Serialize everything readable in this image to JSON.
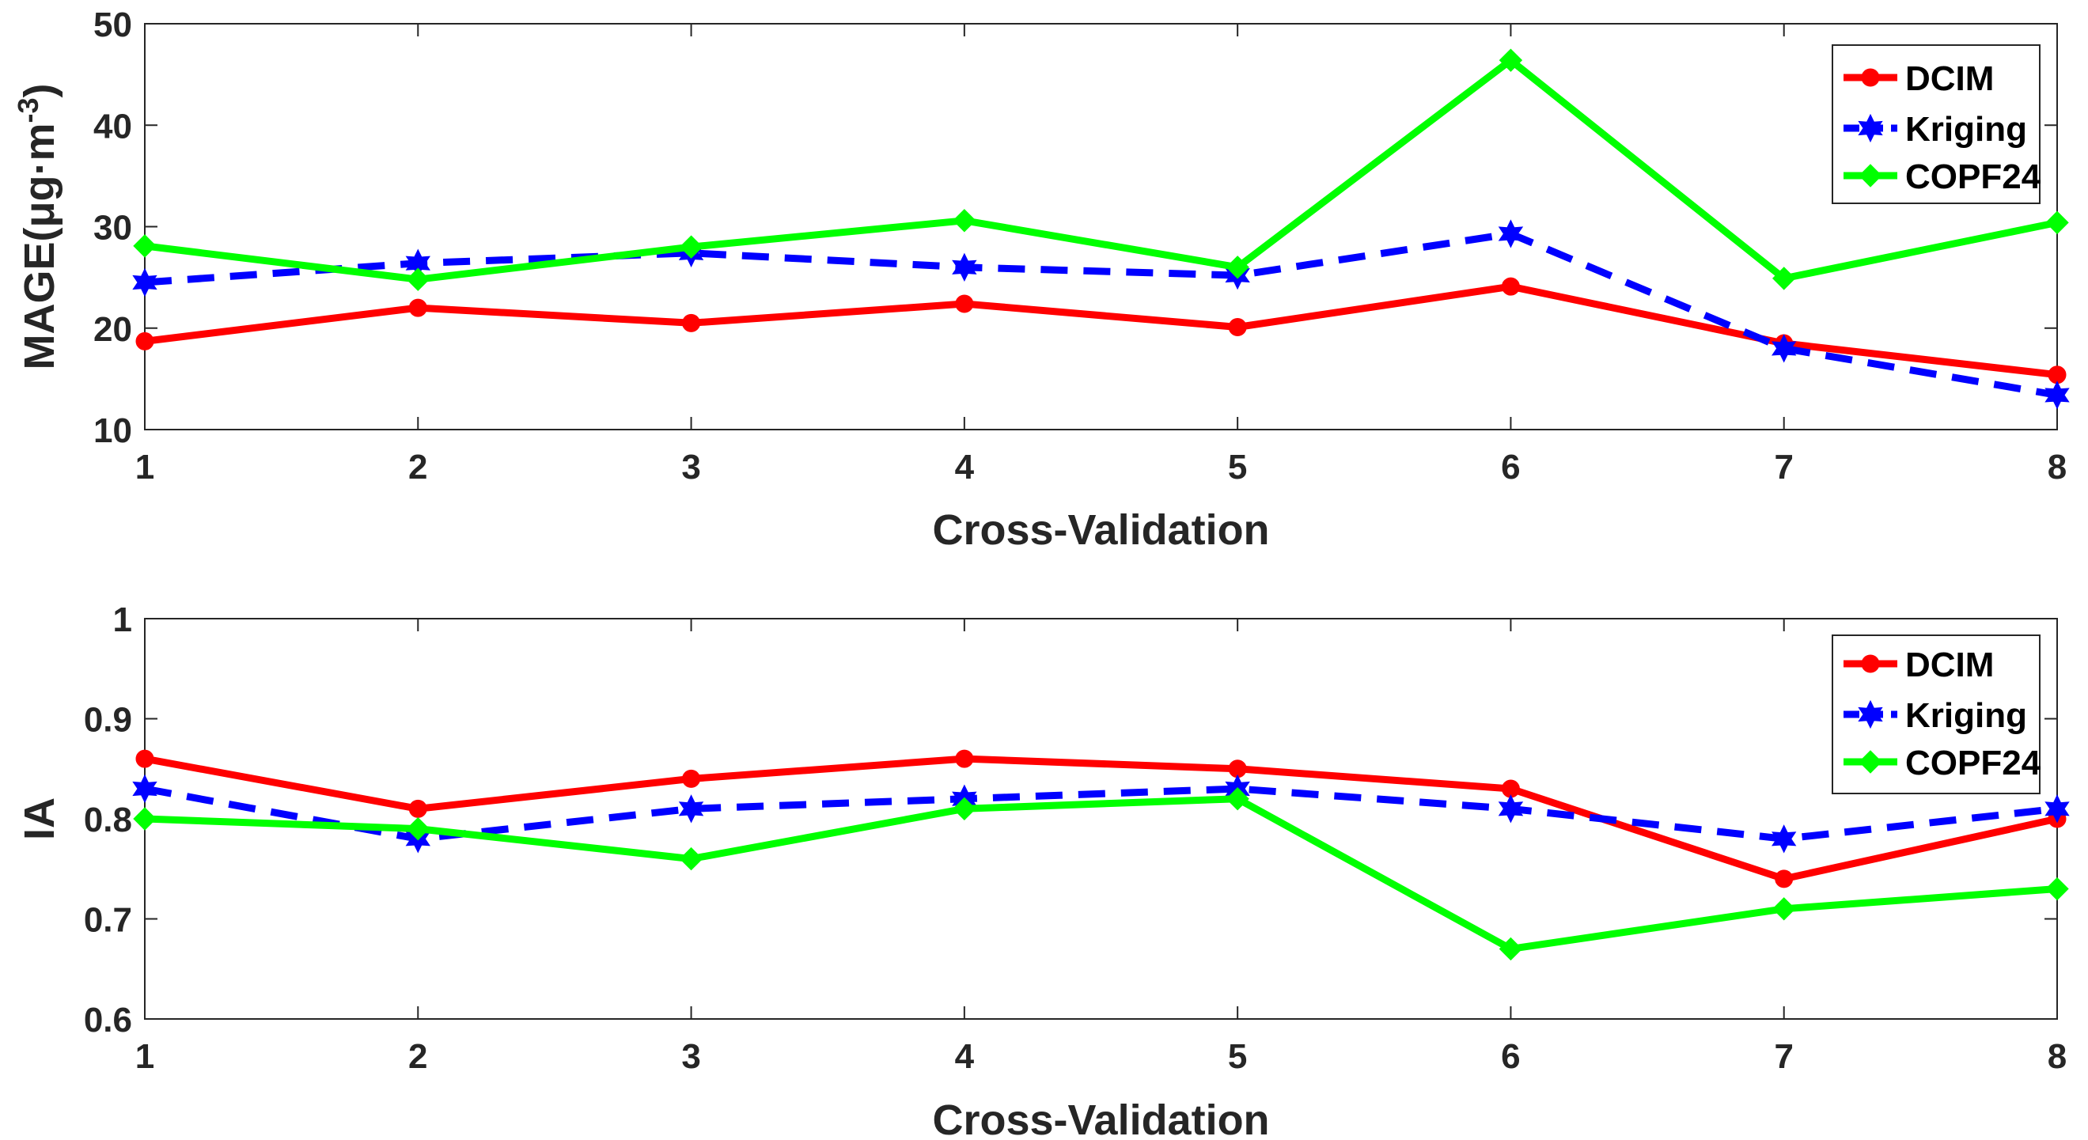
{
  "chart_data": [
    {
      "type": "line",
      "title": "",
      "xlabel": "Cross-Validation",
      "ylabel": "MAGE(μg·m",
      "ylabel_sup": "-3",
      "ylabel_close": ")",
      "x": [
        1,
        2,
        3,
        4,
        5,
        6,
        7,
        8
      ],
      "x_tick_labels": [
        "1",
        "2",
        "3",
        "4",
        "5",
        "6",
        "7",
        "8"
      ],
      "xlim": [
        1,
        8
      ],
      "ylim": [
        10,
        50
      ],
      "y_ticks": [
        10,
        20,
        30,
        40,
        50
      ],
      "y_tick_labels": [
        "10",
        "20",
        "30",
        "40",
        "50"
      ],
      "grid": false,
      "legend_position": "top-right",
      "series": [
        {
          "name": "DCIM",
          "color": "#ff0000",
          "dashed": false,
          "marker": "circle",
          "values": [
            18.7,
            22.0,
            20.5,
            22.4,
            20.1,
            24.1,
            18.5,
            15.4
          ]
        },
        {
          "name": "Kriging",
          "color": "#0000ff",
          "dashed": true,
          "marker": "hexagram",
          "values": [
            24.5,
            26.4,
            27.4,
            26.0,
            25.2,
            29.3,
            18.0,
            13.4
          ]
        },
        {
          "name": "COPF24",
          "color": "#00ff00",
          "dashed": false,
          "marker": "diamond",
          "values": [
            28.1,
            24.8,
            28.0,
            30.6,
            26.0,
            46.4,
            24.9,
            30.4
          ]
        }
      ]
    },
    {
      "type": "line",
      "title": "",
      "xlabel": "Cross-Validation",
      "ylabel": "IA",
      "x": [
        1,
        2,
        3,
        4,
        5,
        6,
        7,
        8
      ],
      "x_tick_labels": [
        "1",
        "2",
        "3",
        "4",
        "5",
        "6",
        "7",
        "8"
      ],
      "xlim": [
        1,
        8
      ],
      "ylim": [
        0.6,
        1.0
      ],
      "y_ticks": [
        0.6,
        0.7,
        0.8,
        0.9,
        1.0
      ],
      "y_tick_labels": [
        "0.6",
        "0.7",
        "0.8",
        "0.9",
        "1"
      ],
      "grid": false,
      "legend_position": "top-right",
      "series": [
        {
          "name": "DCIM",
          "color": "#ff0000",
          "dashed": false,
          "marker": "circle",
          "values": [
            0.86,
            0.81,
            0.84,
            0.86,
            0.85,
            0.83,
            0.74,
            0.8
          ]
        },
        {
          "name": "Kriging",
          "color": "#0000ff",
          "dashed": true,
          "marker": "hexagram",
          "values": [
            0.83,
            0.78,
            0.81,
            0.82,
            0.83,
            0.81,
            0.78,
            0.81
          ]
        },
        {
          "name": "COPF24",
          "color": "#00ff00",
          "dashed": false,
          "marker": "diamond",
          "values": [
            0.8,
            0.79,
            0.76,
            0.81,
            0.82,
            0.67,
            0.71,
            0.73
          ]
        }
      ]
    }
  ]
}
